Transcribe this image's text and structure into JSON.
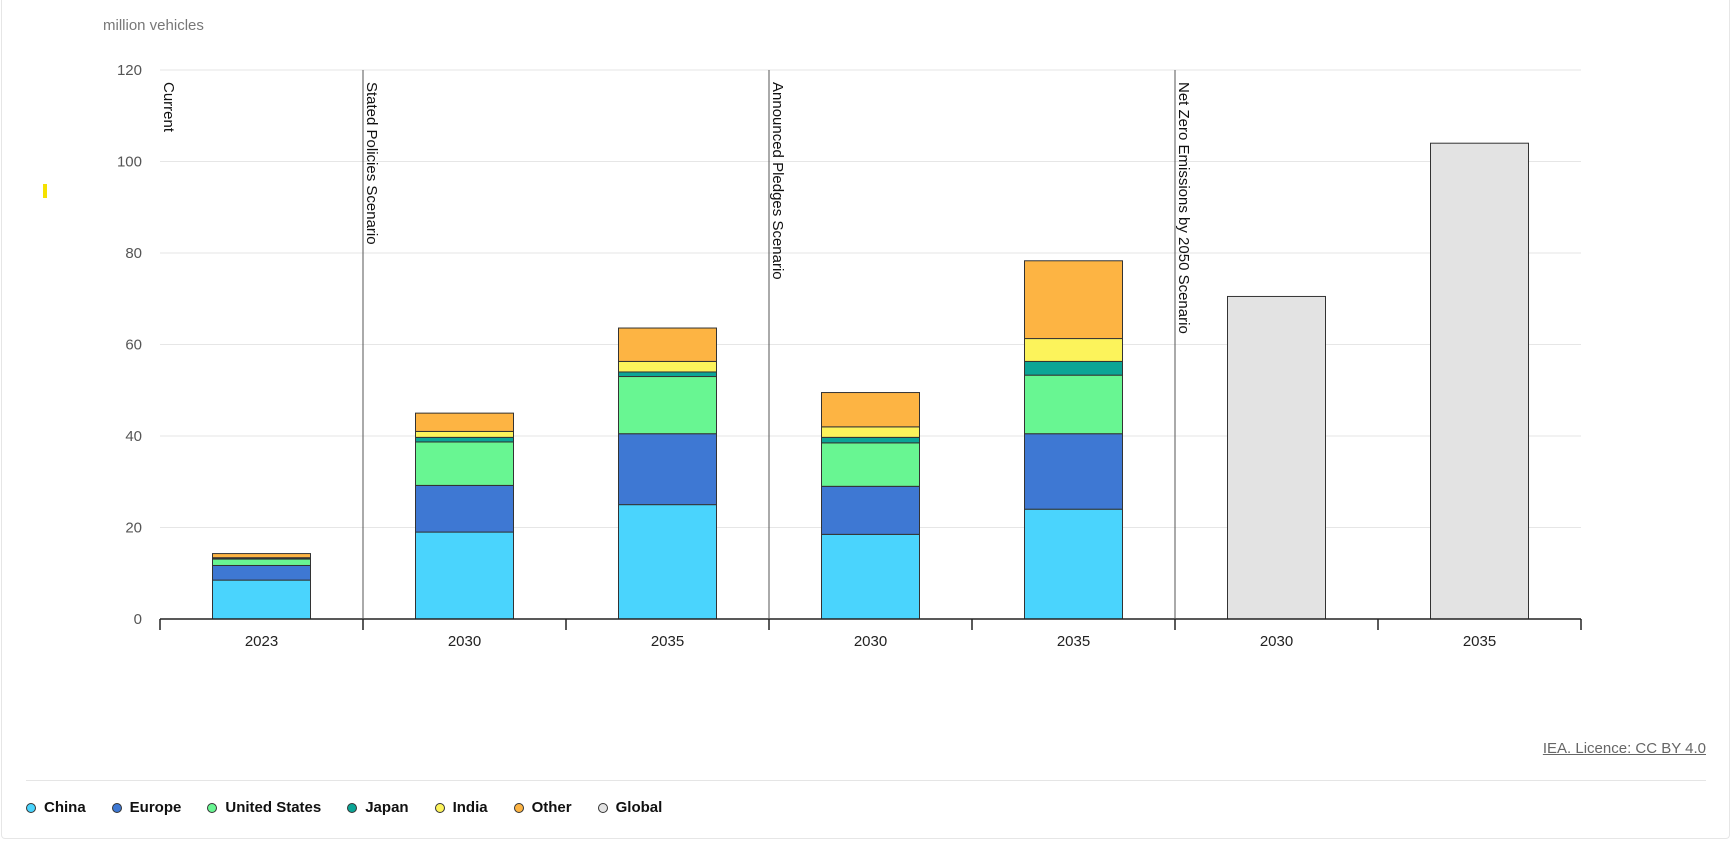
{
  "chart_data": {
    "type": "bar",
    "stacked": true,
    "unit_label": "million vehicles",
    "ylim": [
      0,
      120
    ],
    "yticks": [
      0,
      20,
      40,
      60,
      80,
      100,
      120
    ],
    "grid": true,
    "legend_position": "bottom-left",
    "scenarios": [
      {
        "label": "Current",
        "span": [
          0,
          1
        ]
      },
      {
        "label": "Stated Policies Scenario",
        "span": [
          1,
          3
        ]
      },
      {
        "label": "Announced Pledges Scenario",
        "span": [
          3,
          5
        ]
      },
      {
        "label": "Net Zero Emissions by 2050 Scenario",
        "span": [
          5,
          7
        ]
      }
    ],
    "categories": [
      "2023",
      "2030",
      "2035",
      "2030",
      "2035",
      "2030",
      "2035"
    ],
    "series": [
      {
        "name": "China",
        "color": "#4ad4fd",
        "values": [
          8.5,
          19,
          25,
          18.5,
          24,
          0,
          0
        ]
      },
      {
        "name": "Europe",
        "color": "#3e78d3",
        "values": [
          3.2,
          10.2,
          15.5,
          10.5,
          16.5,
          0,
          0
        ]
      },
      {
        "name": "United States",
        "color": "#68f692",
        "values": [
          1.4,
          9.5,
          12.5,
          9.5,
          12.8,
          0,
          0
        ]
      },
      {
        "name": "Japan",
        "color": "#0ba596",
        "values": [
          0.2,
          1,
          1,
          1.2,
          3,
          0,
          0
        ]
      },
      {
        "name": "India",
        "color": "#fcf35b",
        "values": [
          0.1,
          1.3,
          2.3,
          2.3,
          5,
          0,
          0
        ]
      },
      {
        "name": "Other",
        "color": "#fdb443",
        "values": [
          0.9,
          4,
          7.3,
          7.5,
          17,
          0,
          0
        ]
      },
      {
        "name": "Global",
        "color": "#e3e3e3",
        "values": [
          0,
          0,
          0,
          0,
          0,
          70.5,
          104
        ]
      }
    ]
  },
  "credit": "IEA. Licence: CC BY 4.0"
}
